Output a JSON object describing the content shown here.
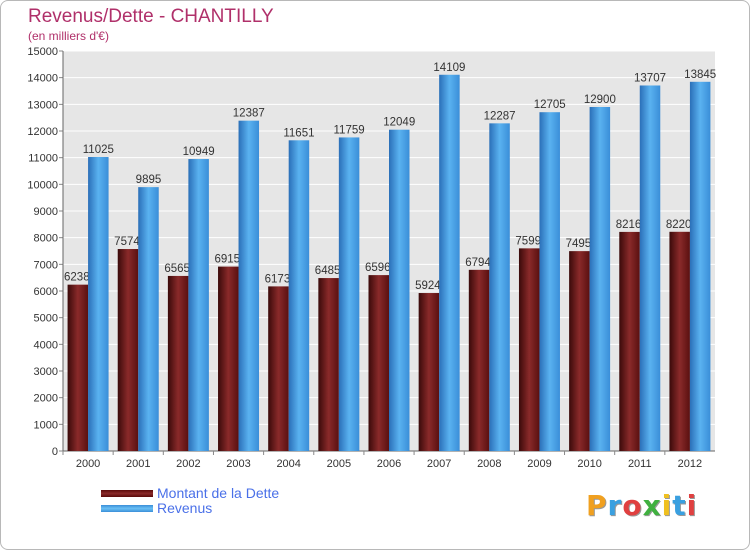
{
  "chart_data": {
    "type": "bar",
    "title": "Revenus/Dette - CHANTILLY",
    "subtitle": "(en milliers d'€)",
    "categories": [
      "2000",
      "2001",
      "2002",
      "2003",
      "2004",
      "2005",
      "2006",
      "2007",
      "2008",
      "2009",
      "2010",
      "2011",
      "2012"
    ],
    "series": [
      {
        "name": "Montant de la Dette",
        "color": "#7a1f1f",
        "values": [
          6238,
          7574,
          6565,
          6915,
          6173,
          6485,
          6596,
          5924,
          6794,
          7599,
          7495,
          8216,
          8220
        ]
      },
      {
        "name": "Revenus",
        "color": "#4aa3e8",
        "values": [
          11025,
          9895,
          10949,
          12387,
          11651,
          11759,
          12049,
          14109,
          12287,
          12705,
          12900,
          13707,
          13845
        ]
      }
    ],
    "ylim": [
      0,
      15000
    ],
    "yticks": [
      0,
      1000,
      2000,
      3000,
      4000,
      5000,
      6000,
      7000,
      8000,
      9000,
      10000,
      11000,
      12000,
      13000,
      14000,
      15000
    ],
    "grid": true,
    "legend_position": "bottom-left"
  },
  "brand": {
    "letters": [
      "P",
      "r",
      "o",
      "x",
      "i",
      "t",
      "i"
    ],
    "colors": [
      "#f0a020",
      "#3aa0e0",
      "#e04040",
      "#40b040",
      "#f0c020",
      "#3aa0e0",
      "#e04040"
    ]
  }
}
